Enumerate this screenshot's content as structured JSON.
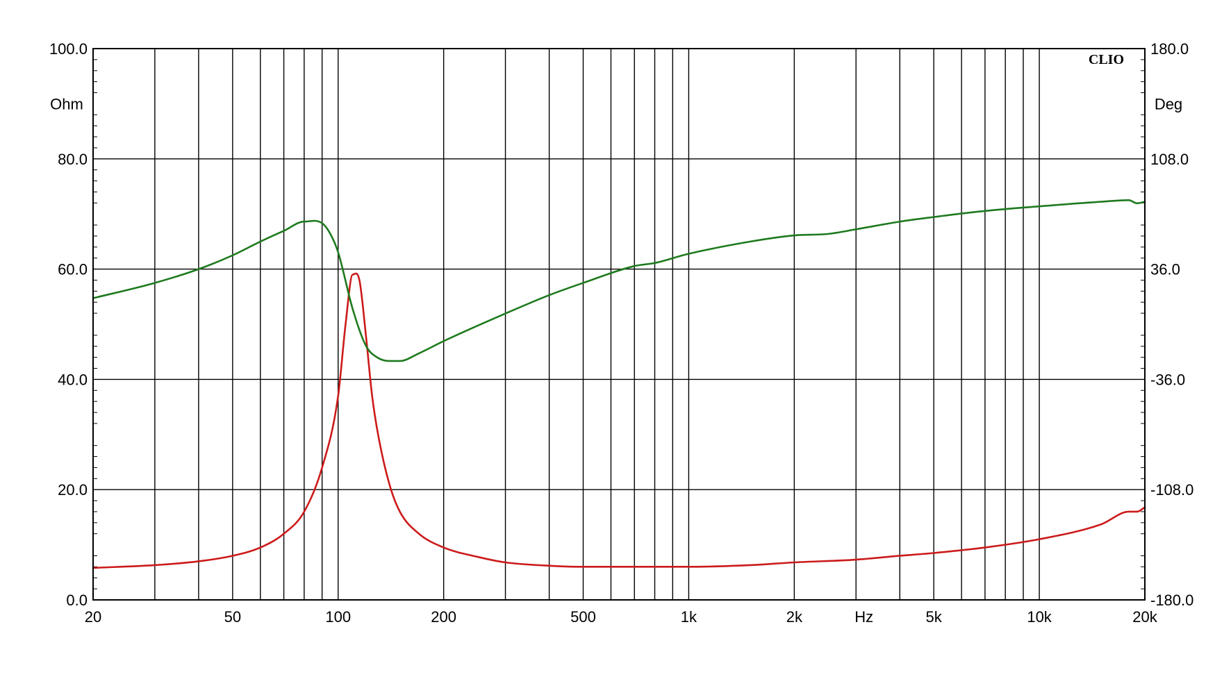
{
  "chart_data": {
    "type": "line",
    "brand": "CLIO",
    "x_scale": "log",
    "xlim": [
      20,
      20000
    ],
    "x_unit": "Hz",
    "x_ticks": [
      {
        "value": 20,
        "label": "20"
      },
      {
        "value": 50,
        "label": "50"
      },
      {
        "value": 100,
        "label": "100"
      },
      {
        "value": 200,
        "label": "200"
      },
      {
        "value": 500,
        "label": "500"
      },
      {
        "value": 1000,
        "label": "1k"
      },
      {
        "value": 2000,
        "label": "2k"
      },
      {
        "value": 5000,
        "label": "5k"
      },
      {
        "value": 10000,
        "label": "10k"
      },
      {
        "value": 20000,
        "label": "20k"
      }
    ],
    "y_left": {
      "unit": "Ohm",
      "ylim": [
        0,
        100
      ],
      "ticks": [
        "0.0",
        "20.0",
        "40.0",
        "60.0",
        "80.0",
        "100.0"
      ]
    },
    "y_right": {
      "unit": "Deg",
      "ylim": [
        -180,
        180
      ],
      "ticks": [
        "-180.0",
        "-108.0",
        "-36.0",
        "36.0",
        "108.0",
        "180.0"
      ]
    },
    "grid": true,
    "series": [
      {
        "axis": "left",
        "color": "#cc1a1a",
        "x": [
          20,
          30,
          40,
          50,
          60,
          70,
          80,
          90,
          100,
          105,
          110,
          115,
          120,
          125,
          130,
          140,
          150,
          170,
          200,
          250,
          300,
          400,
          500,
          700,
          1000,
          1500,
          2000,
          3000,
          4000,
          5000,
          7000,
          10000,
          15000,
          18000,
          19000,
          20000
        ],
        "y": [
          5.8,
          6.3,
          7.0,
          8.0,
          9.5,
          12.0,
          16.0,
          24.0,
          37.0,
          50.0,
          59.0,
          58.0,
          48.0,
          37.0,
          30.0,
          21.0,
          16.0,
          12.0,
          9.5,
          7.8,
          6.8,
          6.2,
          6.0,
          6.0,
          6.0,
          6.3,
          6.8,
          7.3,
          8.0,
          8.5,
          9.5,
          11.0,
          13.7,
          16.0,
          16.0,
          16.8
        ]
      },
      {
        "axis": "right",
        "color": "#1e7a1e",
        "x": [
          20,
          30,
          40,
          50,
          60,
          70,
          80,
          90,
          95,
          100,
          110,
          120,
          130,
          140,
          150,
          170,
          200,
          300,
          400,
          500,
          700,
          800,
          1000,
          1500,
          2000,
          2500,
          3000,
          4000,
          5000,
          7000,
          10000,
          15000,
          18000,
          19000,
          20000
        ],
        "y": [
          17,
          27,
          36,
          45,
          54,
          61,
          67,
          66,
          59,
          47,
          10,
          -14,
          -22,
          -24,
          -24,
          -19,
          -11,
          7,
          19,
          27,
          38,
          40,
          46,
          54,
          58,
          59,
          62,
          67,
          70,
          74,
          77,
          80,
          81,
          79,
          80
        ]
      }
    ]
  }
}
